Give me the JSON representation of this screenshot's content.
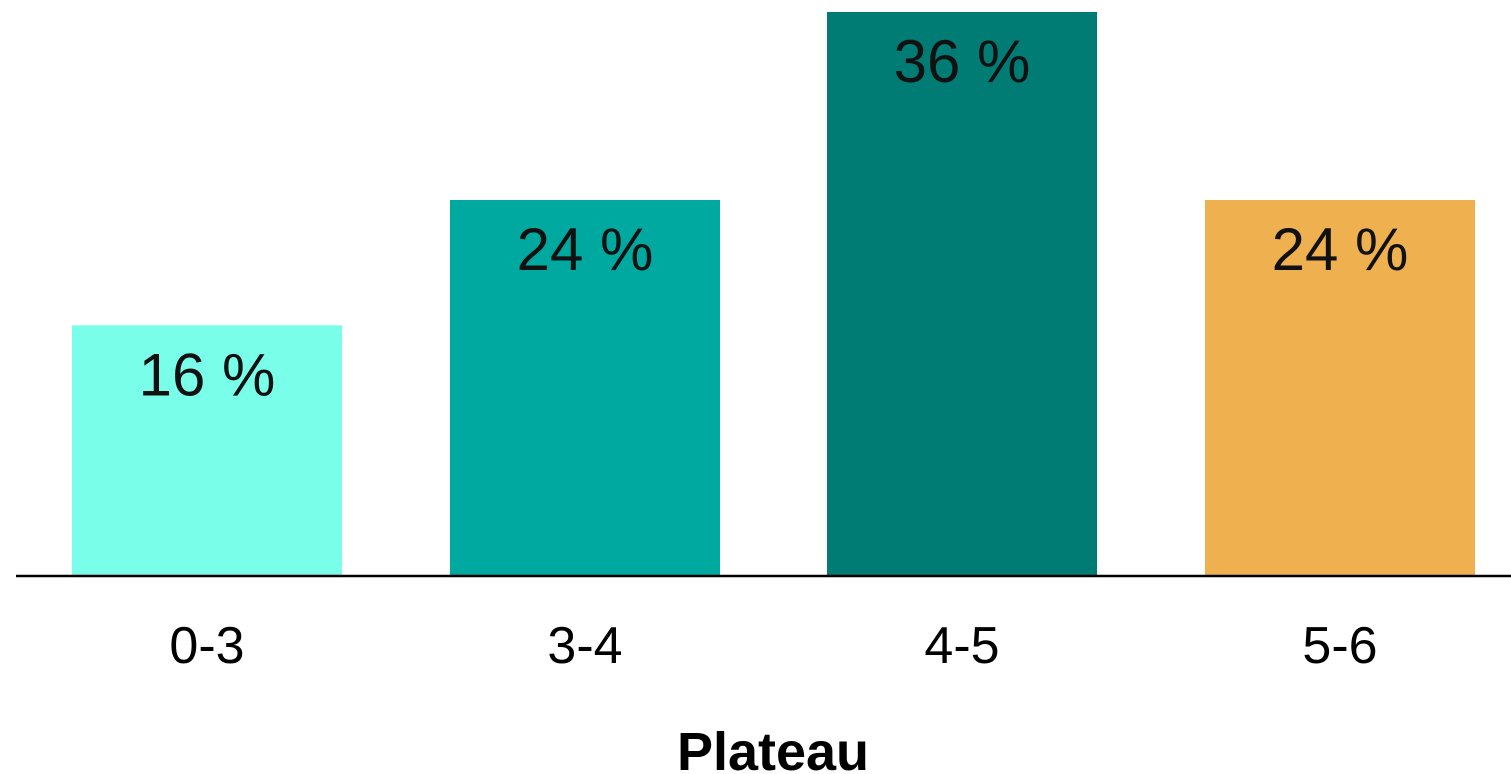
{
  "chart_data": {
    "type": "bar",
    "categories": [
      "0-3",
      "3-4",
      "4-5",
      "5-6"
    ],
    "values": [
      16,
      24,
      36,
      24
    ],
    "value_labels": [
      "16 %",
      "24 %",
      "36 %",
      "24 %"
    ],
    "colors": [
      "#79FFE9",
      "#00A99F",
      "#007C75",
      "#EFB14F"
    ],
    "xlabel": "Plateau",
    "ylabel": "",
    "ylim": [
      0,
      36
    ],
    "grid": false,
    "legend": "none"
  }
}
